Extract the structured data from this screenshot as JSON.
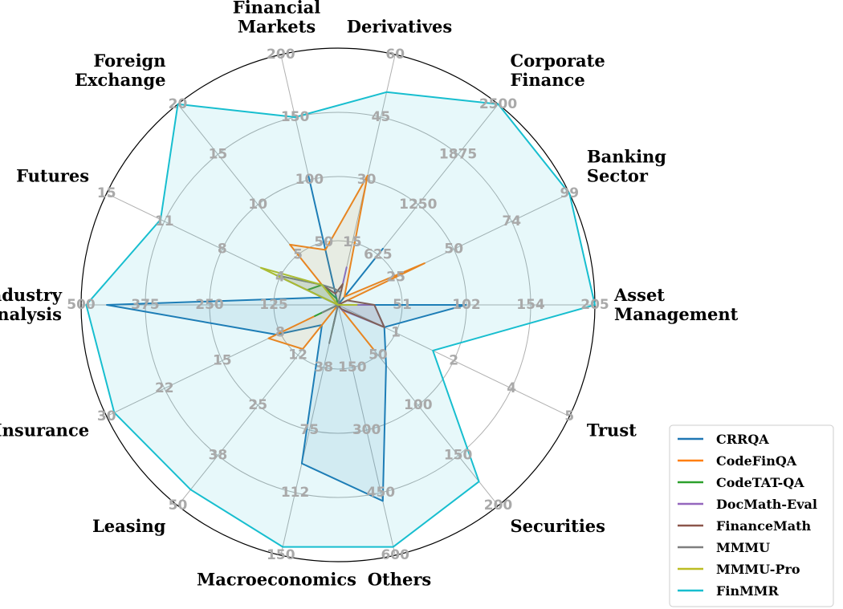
{
  "chart_data": {
    "type": "radar",
    "categories": [
      "Asset Management",
      "Banking Sector",
      "Corporate Finance",
      "Derivatives",
      "Financial Markets",
      "Foreign Exchange",
      "Futures",
      "Industry Analysis",
      "Insurance",
      "Leasing",
      "Macroeconomics",
      "Others",
      "Securities",
      "Trust"
    ],
    "category_display": [
      [
        "Asset",
        "Management"
      ],
      [
        "Banking",
        "Sector"
      ],
      [
        "Corporate",
        "Finance"
      ],
      [
        "Derivatives"
      ],
      [
        "Financial",
        "Markets"
      ],
      [
        "Foreign",
        "Exchange"
      ],
      [
        "Futures"
      ],
      [
        "Industry",
        "Analysis"
      ],
      [
        "Insurance"
      ],
      [
        "Leasing"
      ],
      [
        "Macroeconomics"
      ],
      [
        "Others"
      ],
      [
        "Securities"
      ],
      [
        "Trust"
      ]
    ],
    "axis_max": [
      205,
      99,
      2500,
      60,
      200,
      20,
      15,
      500,
      30,
      50,
      150,
      600,
      200,
      5
    ],
    "tick_labels": [
      [
        "51",
        "102",
        "154",
        "205"
      ],
      [
        "25",
        "50",
        "74",
        "99"
      ],
      [
        "625",
        "1250",
        "1875",
        "2500"
      ],
      [
        "15",
        "30",
        "45",
        "60"
      ],
      [
        "50",
        "100",
        "150",
        "200"
      ],
      [
        "5",
        "10",
        "15",
        "20"
      ],
      [
        "4",
        "8",
        "11",
        "15"
      ],
      [
        "125",
        "250",
        "375",
        "500"
      ],
      [
        "8",
        "15",
        "22",
        "30"
      ],
      [
        "12",
        "25",
        "38",
        "50"
      ],
      [
        "38",
        "75",
        "112",
        "150"
      ],
      [
        "150",
        "300",
        "450",
        "600"
      ],
      [
        "50",
        "100",
        "150",
        "200"
      ],
      [
        "1",
        "2",
        "4",
        "5"
      ]
    ],
    "series": [
      {
        "name": "CRRQA",
        "color": "#1f77b4",
        "values": [
          102,
          0,
          700,
          0,
          103,
          0,
          1,
          450,
          8,
          5,
          95,
          470,
          60,
          1
        ]
      },
      {
        "name": "CodeFinQA",
        "color": "#ff7f0e",
        "values": [
          0,
          37,
          100,
          31,
          44,
          6,
          0,
          0,
          9,
          11,
          0,
          0,
          44,
          0
        ]
      },
      {
        "name": "CodeTAT-QA",
        "color": "#2ca02c",
        "values": [
          0,
          0,
          0,
          0,
          5,
          2,
          2,
          0,
          3,
          0,
          17,
          0,
          0,
          0
        ]
      },
      {
        "name": "DocMath-Eval",
        "color": "#9467bd",
        "values": [
          29,
          0,
          0,
          9,
          0,
          0,
          0,
          0,
          0,
          0,
          0,
          0,
          5,
          1
        ]
      },
      {
        "name": "FinanceMath",
        "color": "#8c564b",
        "values": [
          29,
          4,
          0,
          5,
          9,
          2,
          4,
          0,
          0,
          0,
          12,
          0,
          4,
          1
        ]
      },
      {
        "name": "MMMU",
        "color": "#7f7f7f",
        "values": [
          2,
          0,
          0,
          3,
          13,
          2,
          4,
          0,
          2,
          0,
          23,
          0,
          0,
          0
        ]
      },
      {
        "name": "MMMU-Pro",
        "color": "#bcbd22",
        "values": [
          15,
          0,
          0,
          0,
          0,
          2,
          5,
          0,
          0,
          0,
          0,
          0,
          0,
          0
        ]
      },
      {
        "name": "FinMMR",
        "color": "#17becf",
        "values": [
          205,
          99,
          2500,
          51,
          150,
          20,
          11.5,
          490,
          29,
          46,
          145,
          580,
          176,
          2.05
        ]
      }
    ],
    "legend_position": "lower-right",
    "grid": true
  }
}
